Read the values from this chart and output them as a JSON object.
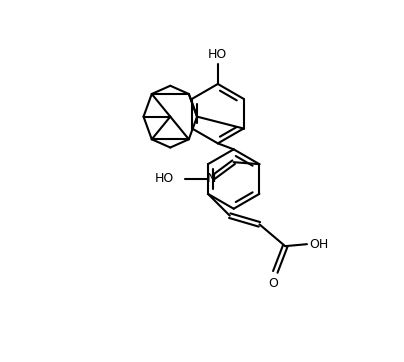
{
  "background_color": "#ffffff",
  "line_color": "#000000",
  "line_width": 1.5,
  "font_size": 9,
  "figsize": [
    4.04,
    3.62
  ],
  "dpi": 100,
  "xlim": [
    0,
    10
  ],
  "ylim": [
    0,
    9
  ]
}
